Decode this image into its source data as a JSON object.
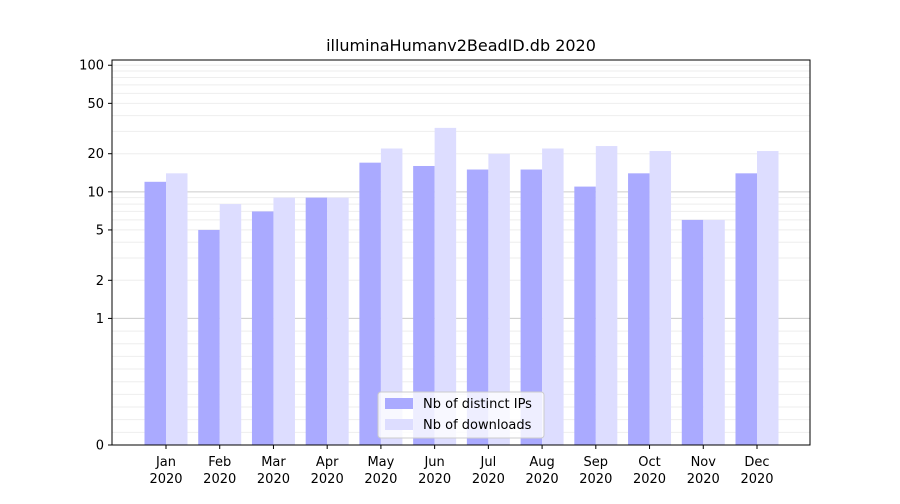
{
  "chart_data": {
    "type": "bar",
    "title": "illuminaHumanv2BeadID.db 2020",
    "xlabel": "",
    "ylabel": "",
    "y_scale": "symlog",
    "ylim": [
      0,
      110
    ],
    "y_ticks": [
      0,
      1,
      2,
      5,
      10,
      20,
      50,
      100
    ],
    "y_tick_labels": [
      "0",
      "1",
      "2",
      "5",
      "10",
      "20",
      "50",
      "100"
    ],
    "grid": true,
    "legend_position": "bottom-center",
    "categories": [
      {
        "month": "Jan",
        "year": "2020"
      },
      {
        "month": "Feb",
        "year": "2020"
      },
      {
        "month": "Mar",
        "year": "2020"
      },
      {
        "month": "Apr",
        "year": "2020"
      },
      {
        "month": "May",
        "year": "2020"
      },
      {
        "month": "Jun",
        "year": "2020"
      },
      {
        "month": "Jul",
        "year": "2020"
      },
      {
        "month": "Aug",
        "year": "2020"
      },
      {
        "month": "Sep",
        "year": "2020"
      },
      {
        "month": "Oct",
        "year": "2020"
      },
      {
        "month": "Nov",
        "year": "2020"
      },
      {
        "month": "Dec",
        "year": "2020"
      }
    ],
    "series": [
      {
        "name": "Nb of distinct IPs",
        "color": "#aaaaff",
        "values": [
          12,
          5,
          7,
          9,
          17,
          16,
          15,
          15,
          11,
          14,
          6,
          14
        ]
      },
      {
        "name": "Nb of downloads",
        "color": "#ddddff",
        "values": [
          14,
          8,
          9,
          9,
          22,
          32,
          20,
          22,
          23,
          21,
          6,
          21
        ]
      }
    ]
  }
}
